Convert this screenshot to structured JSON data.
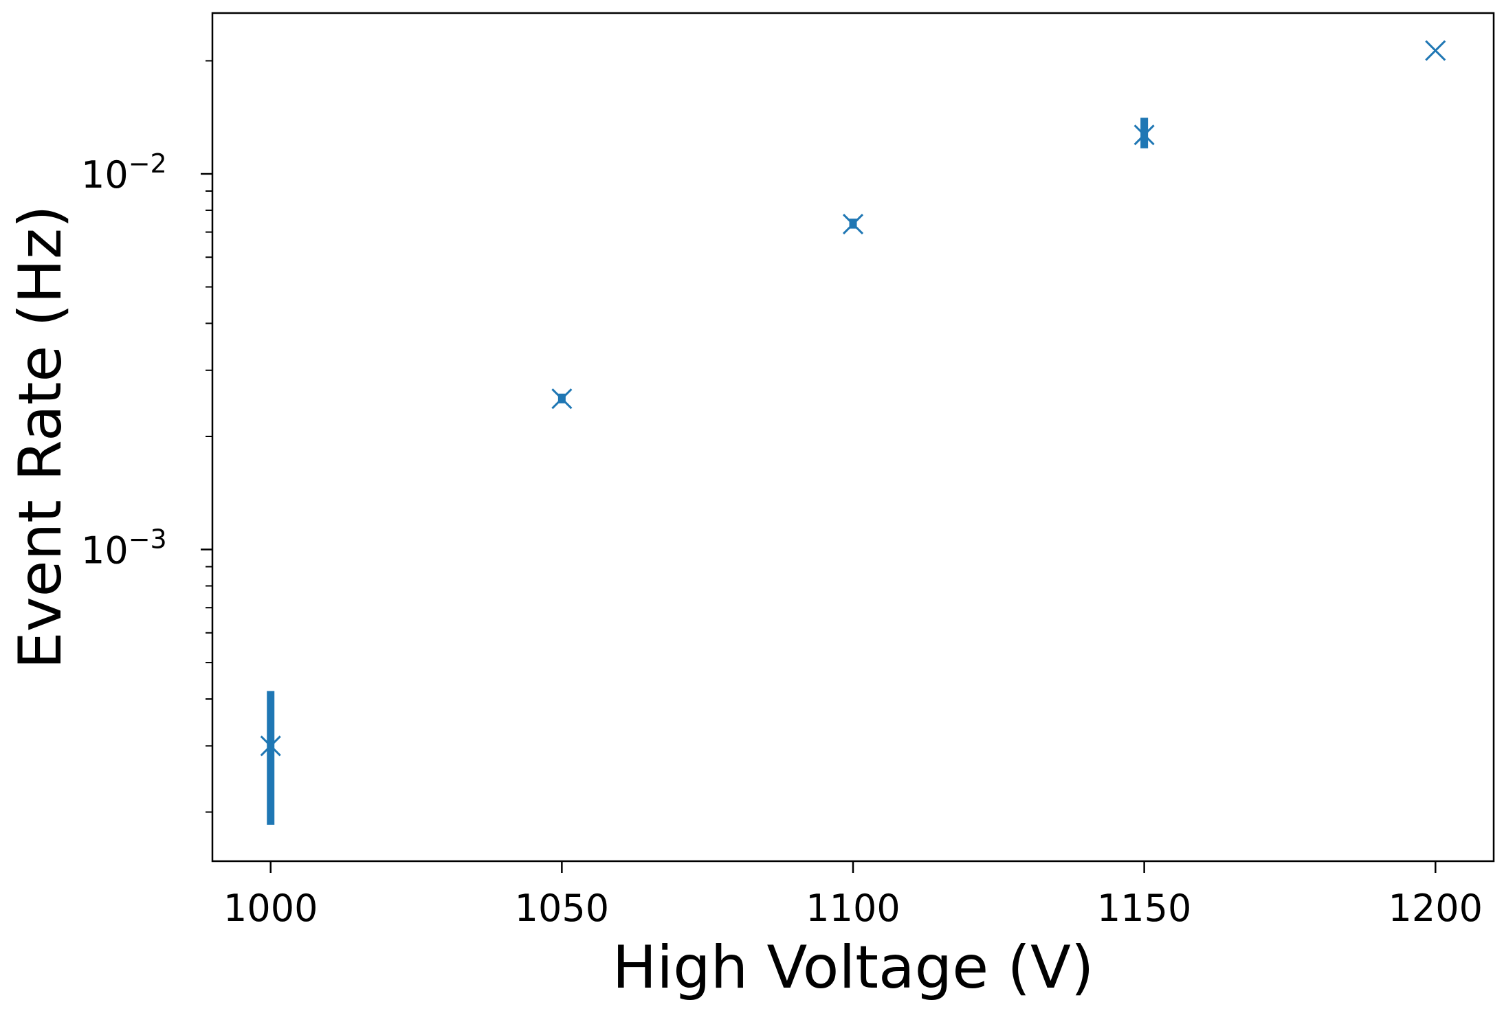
{
  "chart_data": {
    "type": "scatter",
    "title": "",
    "xlabel": "High Voltage (V)",
    "ylabel": "Event Rate (Hz)",
    "xlim": [
      990,
      1210
    ],
    "ylim": [
      0.000148,
      0.0268
    ],
    "yscale": "log",
    "grid": false,
    "marker": "x",
    "color": "#1f77b4",
    "x_ticks": [
      {
        "value": 1000,
        "label": "1000"
      },
      {
        "value": 1050,
        "label": "1050"
      },
      {
        "value": 1100,
        "label": "1100"
      },
      {
        "value": 1150,
        "label": "1150"
      },
      {
        "value": 1200,
        "label": "1200"
      }
    ],
    "y_ticks": [
      {
        "value": 0.001,
        "base": "10",
        "exponent": "−3"
      },
      {
        "value": 0.01,
        "base": "10",
        "exponent": "−2"
      }
    ],
    "series": [
      {
        "points": [
          {
            "x": 1000,
            "y": 0.0003,
            "yerr_low": 0.000185,
            "yerr_high": 0.00042
          },
          {
            "x": 1050,
            "y": 0.00252,
            "yerr_low": 0.00245,
            "yerr_high": 0.0026
          },
          {
            "x": 1100,
            "y": 0.00735,
            "yerr_low": 0.00715,
            "yerr_high": 0.0076
          },
          {
            "x": 1150,
            "y": 0.0127,
            "yerr_low": 0.0117,
            "yerr_high": 0.0141
          },
          {
            "x": 1200,
            "y": 0.0213,
            "yerr_low": 0.0213,
            "yerr_high": 0.0213
          }
        ]
      }
    ]
  }
}
